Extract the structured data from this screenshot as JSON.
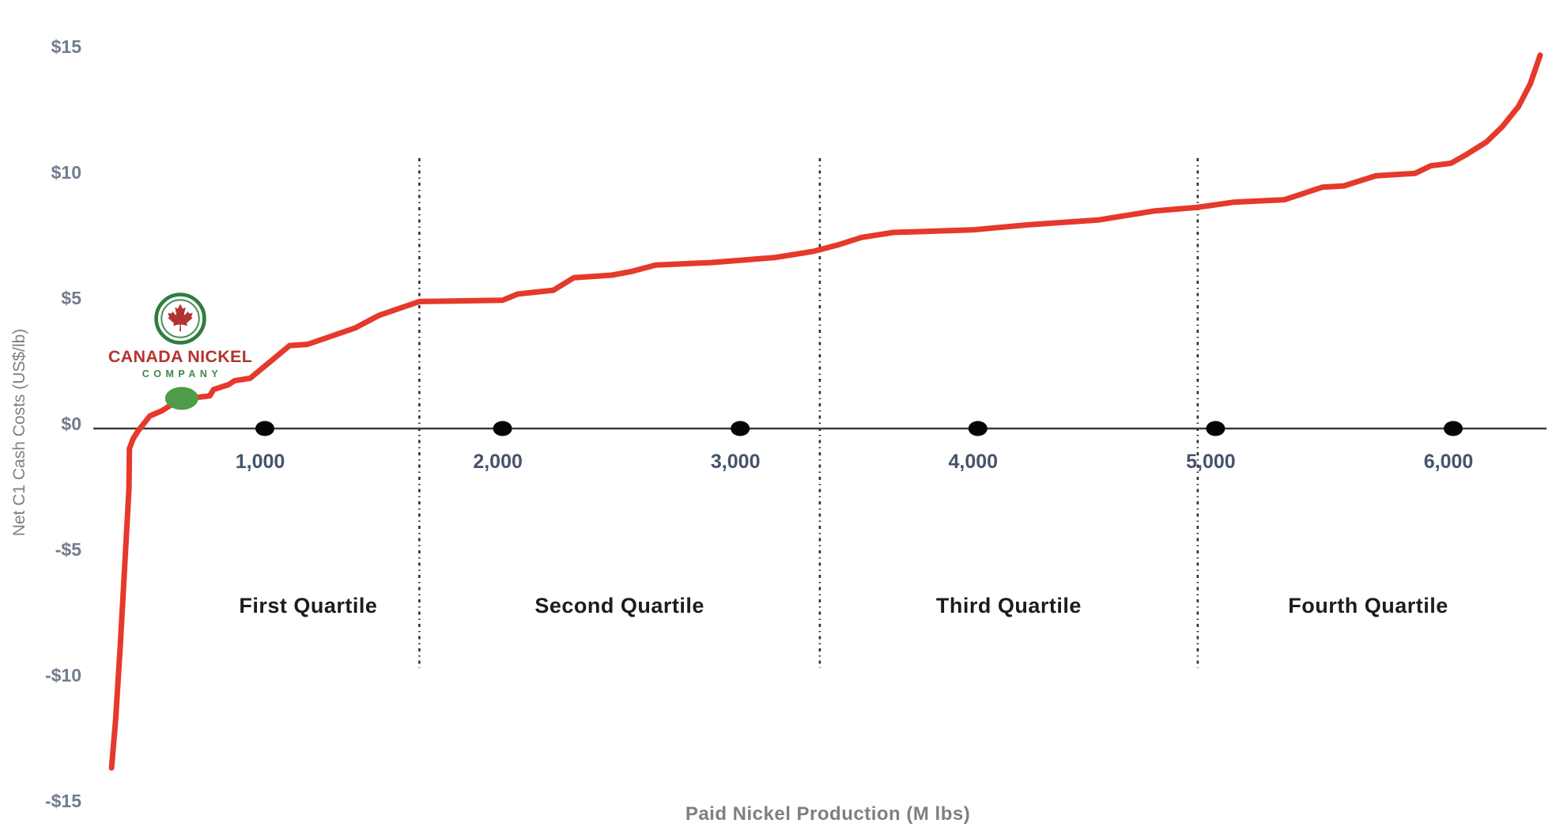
{
  "chart_data": {
    "type": "line",
    "title": "",
    "xlabel": "Paid Nickel Production (M lbs)",
    "ylabel": "Net C1 Cash Costs (US$/lb)",
    "xlim": [
      0,
      6500
    ],
    "ylim": [
      -15,
      15
    ],
    "grid": false,
    "legend": "none",
    "x_ticks": [
      1000,
      2000,
      3000,
      4000,
      5000,
      6000
    ],
    "x_tick_labels": [
      "1,000",
      "2,000",
      "3,000",
      "4,000",
      "5,000",
      "6,000"
    ],
    "y_ticks": [
      15,
      10,
      5,
      0,
      -5,
      -10,
      -15
    ],
    "y_tick_labels": [
      "$15",
      "$10",
      "$5",
      "$0",
      "-$5",
      "-$10",
      "-$15"
    ],
    "quartile_boundaries_x": [
      1650,
      3335,
      4925
    ],
    "quartile_region_extent_x": [
      715,
      6360
    ],
    "quartile_labels": [
      "First Quartile",
      "Second Quartile",
      "Third Quartile",
      "Fourth Quartile"
    ],
    "series": [
      {
        "name": "Net C1 cash cost curve",
        "color": "#e5392c",
        "points": [
          [
            355,
            -13.5
          ],
          [
            372,
            -11.6
          ],
          [
            392,
            -8.6
          ],
          [
            412,
            -5.2
          ],
          [
            428,
            -2.4
          ],
          [
            430,
            -0.8
          ],
          [
            446,
            -0.4
          ],
          [
            466,
            -0.1
          ],
          [
            516,
            0.5
          ],
          [
            566,
            0.7
          ],
          [
            650,
            1.2
          ],
          [
            724,
            1.25
          ],
          [
            768,
            1.3
          ],
          [
            784,
            1.55
          ],
          [
            848,
            1.75
          ],
          [
            872,
            1.9
          ],
          [
            938,
            2.0
          ],
          [
            1104,
            3.3
          ],
          [
            1180,
            3.35
          ],
          [
            1380,
            4.0
          ],
          [
            1480,
            4.5
          ],
          [
            1650,
            5.05
          ],
          [
            2000,
            5.1
          ],
          [
            2064,
            5.35
          ],
          [
            2214,
            5.5
          ],
          [
            2300,
            6.0
          ],
          [
            2460,
            6.1
          ],
          [
            2544,
            6.25
          ],
          [
            2644,
            6.5
          ],
          [
            2878,
            6.6
          ],
          [
            3144,
            6.8
          ],
          [
            3310,
            7.05
          ],
          [
            3410,
            7.3
          ],
          [
            3510,
            7.6
          ],
          [
            3644,
            7.8
          ],
          [
            3976,
            7.9
          ],
          [
            4210,
            8.1
          ],
          [
            4510,
            8.3
          ],
          [
            4740,
            8.65
          ],
          [
            4925,
            8.8
          ],
          [
            5075,
            9.0
          ],
          [
            5290,
            9.1
          ],
          [
            5450,
            9.6
          ],
          [
            5540,
            9.65
          ],
          [
            5674,
            10.05
          ],
          [
            5840,
            10.15
          ],
          [
            5906,
            10.45
          ],
          [
            5990,
            10.55
          ],
          [
            6056,
            10.9
          ],
          [
            6140,
            11.4
          ],
          [
            6206,
            12.0
          ],
          [
            6274,
            12.8
          ],
          [
            6324,
            13.7
          ],
          [
            6366,
            14.85
          ]
        ]
      }
    ],
    "marker": {
      "label": "Canada Nickel Company position",
      "x": 650,
      "y": 1.2,
      "color": "#4f9b48"
    }
  },
  "logo": {
    "line1": "CANADA NICKEL",
    "line2": "COMPANY",
    "text_red": "#b23430",
    "ring_green": "#2f7d3f",
    "company_green": "#3c8a47"
  },
  "style_colors": {
    "curve_red": "#e5392c",
    "marker_green": "#4f9b48",
    "x_tick_label": "#47536b",
    "y_tick_label": "#717c8d",
    "axis_line": "#3c3c3c",
    "divider": "#2f2f2f",
    "quartile_label": "#1c1c1c",
    "axis_title_gray": "#7f7f7f"
  }
}
